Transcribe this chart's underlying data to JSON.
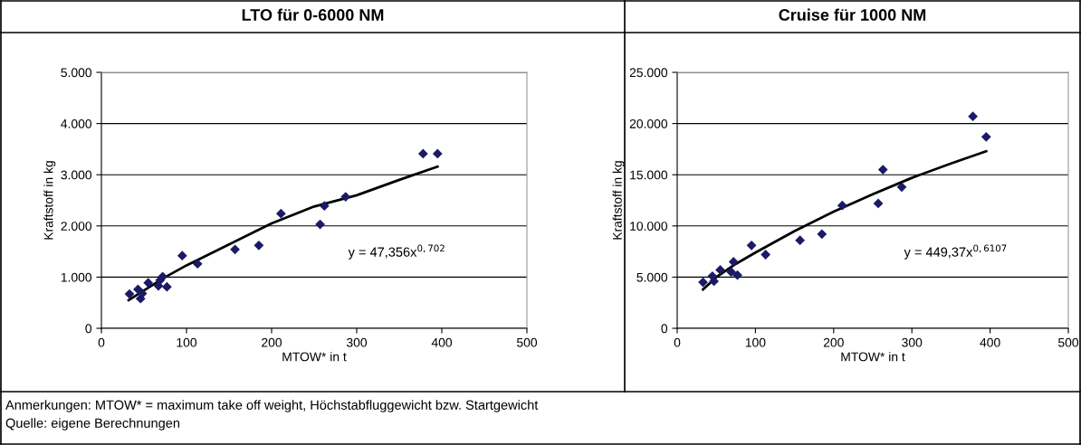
{
  "chart_data": [
    {
      "type": "scatter",
      "title": "LTO für 0-6000 NM",
      "xlabel": "MTOW* in t",
      "ylabel": "Kraftstoff in kg",
      "xlim": [
        0,
        500
      ],
      "xticks": [
        0,
        100,
        200,
        300,
        400,
        500
      ],
      "ylim": [
        0,
        5000
      ],
      "yticks": [
        0,
        {
          "value": 1000,
          "label": "1.000"
        },
        {
          "value": 2000,
          "label": "2.000"
        },
        {
          "value": 3000,
          "label": "3.000"
        },
        {
          "value": 4000,
          "label": "4.000"
        },
        {
          "value": 5000,
          "label": "5.000"
        }
      ],
      "grid": "y",
      "marker": "diamond",
      "series": [
        {
          "type": "scatter",
          "color": "#1a1a66",
          "x": [
            33,
            43,
            46,
            48,
            55,
            67,
            69,
            72,
            77,
            95,
            113,
            157,
            185,
            211,
            257,
            262,
            287,
            378,
            395
          ],
          "values": [
            670,
            760,
            580,
            680,
            890,
            830,
            940,
            1010,
            810,
            1420,
            1260,
            1540,
            1620,
            2240,
            2030,
            2390,
            2570,
            3410,
            3410
          ]
        },
        {
          "type": "line",
          "color": "#000000",
          "marker": "none",
          "x": [
            32,
            50,
            75,
            100,
            150,
            200,
            250,
            300,
            350,
            395
          ],
          "values": [
            550,
            740,
            1000,
            1230,
            1640,
            2050,
            2380,
            2600,
            2900,
            3160
          ]
        }
      ],
      "annotations": [
        "y = 47,356x$^{0,702}$"
      ]
    },
    {
      "type": "scatter",
      "title": "Cruise für 1000 NM",
      "xlabel": "MTOW* in t",
      "ylabel": "Kraftstoff in kg",
      "xlim": [
        0,
        500
      ],
      "xticks": [
        0,
        100,
        200,
        300,
        400,
        500
      ],
      "ylim": [
        0,
        25000
      ],
      "yticks": [
        0,
        {
          "value": 5000,
          "label": "5.000"
        },
        {
          "value": 10000,
          "label": "10.000"
        },
        {
          "value": 15000,
          "label": "15.000"
        },
        {
          "value": 20000,
          "label": "20.000"
        },
        {
          "value": 25000,
          "label": "25.000"
        }
      ],
      "grid": "y",
      "marker": "diamond",
      "series": [
        {
          "type": "scatter",
          "color": "#1a1a66",
          "x": [
            33,
            45,
            47,
            55,
            67,
            69,
            72,
            77,
            95,
            113,
            157,
            185,
            211,
            257,
            263,
            287,
            378,
            395
          ],
          "values": [
            4500,
            5100,
            4600,
            5700,
            null,
            5500,
            6500,
            5200,
            8100,
            7200,
            8600,
            9200,
            12000,
            12200,
            15500,
            13800,
            20700,
            18700
          ]
        },
        {
          "type": "line",
          "color": "#000000",
          "marker": "none",
          "x": [
            33,
            50,
            75,
            100,
            150,
            200,
            250,
            300,
            350,
            395
          ],
          "values": [
            3800,
            5000,
            6300,
            7400,
            9500,
            11400,
            13100,
            14700,
            16100,
            17300
          ]
        }
      ],
      "annotations": [
        "y = 449,37x$^{0,6107}$"
      ]
    },
    {
      "type": "other",
      "annotations": [
        "Anmerkungen: MTOW* = maximum take off weight, Höchstabfluggewicht bzw. Startgewicht",
        "Quelle: eigene Berechnungen"
      ]
    }
  ]
}
